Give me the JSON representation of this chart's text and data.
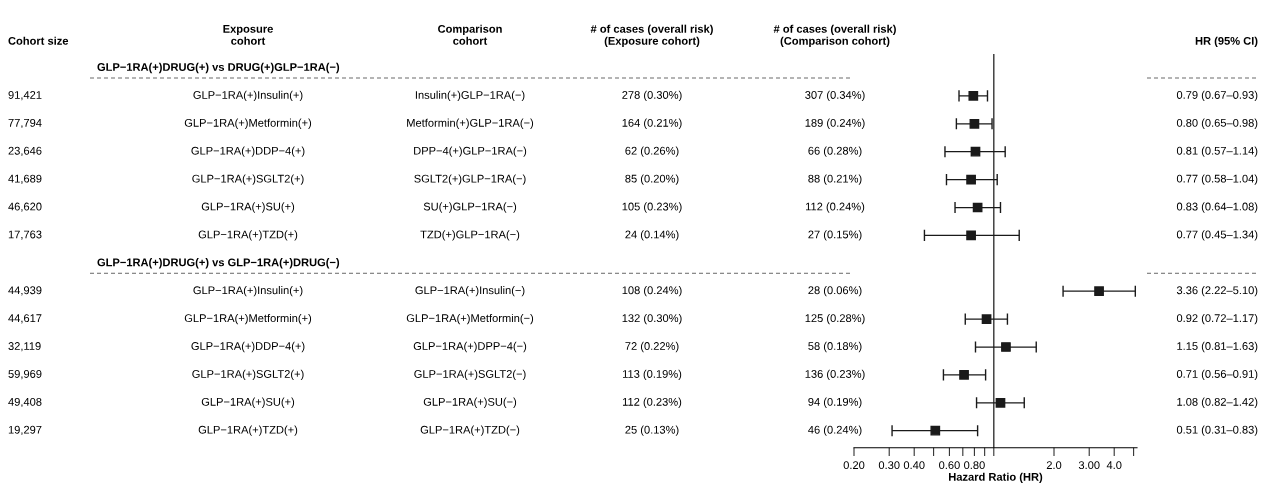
{
  "chart_data": [
    {
      "type": "other",
      "categories": [
        "Cohort size",
        "Exposure\ncohort",
        "Comparison\ncohort",
        "# of cases (overall risk)\n(Exposure cohort)",
        "# of cases (overall risk)\n(Comparison cohort)",
        "HR (95% CI)"
      ],
      "annotations": [
        "GLP−1RA(+)DRUG(+) vs DRUG(+)GLP−1RA(−)",
        "GLP−1RA(+)DRUG(+) vs GLP−1RA(+)DRUG(−)"
      ],
      "cell_labels": [
        [
          null,
          null,
          null,
          null,
          null
        ],
        [
          "91,421",
          "GLP−1RA(+)Insulin(+)",
          "Insulin(+)GLP−1RA(−)",
          "278 (0.30%)",
          "307 (0.34%)"
        ],
        [
          "77,794",
          "GLP−1RA(+)Metformin(+)",
          "Metformin(+)GLP−1RA(−)",
          "164 (0.21%)",
          "189 (0.24%)"
        ],
        [
          "23,646",
          "GLP−1RA(+)DDP−4(+)",
          "DPP−4(+)GLP−1RA(−)",
          "62 (0.26%)",
          "66 (0.28%)"
        ],
        [
          "41,689",
          "GLP−1RA(+)SGLT2(+)",
          "SGLT2(+)GLP−1RA(−)",
          "85 (0.20%)",
          "88 (0.21%)"
        ],
        [
          "46,620",
          "GLP−1RA(+)SU(+)",
          "SU(+)GLP−1RA(−)",
          "105 (0.23%)",
          "112 (0.24%)"
        ],
        [
          "17,763",
          "GLP−1RA(+)TZD(+)",
          "TZD(+)GLP−1RA(−)",
          "24 (0.14%)",
          "27 (0.15%)"
        ],
        [
          null,
          null,
          null,
          null,
          null
        ],
        [
          "44,939",
          "GLP−1RA(+)Insulin(+)",
          "GLP−1RA(+)Insulin(−)",
          "108 (0.24%)",
          "28 (0.06%)"
        ],
        [
          "44,617",
          "GLP−1RA(+)Metformin(+)",
          "GLP−1RA(+)Metformin(−)",
          "132 (0.30%)",
          "125 (0.28%)"
        ],
        [
          "32,119",
          "GLP−1RA(+)DDP−4(+)",
          "GLP−1RA(+)DPP−4(−)",
          "72 (0.22%)",
          "58 (0.18%)"
        ],
        [
          "59,969",
          "GLP−1RA(+)SGLT2(+)",
          "GLP−1RA(+)SGLT2(−)",
          "113 (0.19%)",
          "136 (0.23%)"
        ],
        [
          "49,408",
          "GLP−1RA(+)SU(+)",
          "GLP−1RA(+)SU(−)",
          "112 (0.23%)",
          "94 (0.19%)"
        ],
        [
          "19,297",
          "GLP−1RA(+)TZD(+)",
          "GLP−1RA(+)TZD(−)",
          "25 (0.13%)",
          "46 (0.24%)"
        ]
      ]
    },
    {
      "type": "scatter",
      "orientation": "horizontal",
      "xlabel": "Hazard Ratio (HR)",
      "categories": [
        null,
        null,
        null,
        null,
        null,
        null,
        null,
        null,
        null,
        null,
        null,
        null,
        null,
        null
      ],
      "values": [
        null,
        0.79,
        0.8,
        0.81,
        0.77,
        0.83,
        0.77,
        null,
        3.36,
        0.92,
        1.15,
        0.71,
        1.08,
        0.51
      ],
      "errors": [
        null,
        [
          0.67,
          0.93
        ],
        [
          0.65,
          0.98
        ],
        [
          0.57,
          1.14
        ],
        [
          0.58,
          1.04
        ],
        [
          0.64,
          1.08
        ],
        [
          0.45,
          1.34
        ],
        null,
        [
          2.22,
          5.1
        ],
        [
          0.72,
          1.17
        ],
        [
          0.81,
          1.63
        ],
        [
          0.56,
          0.91
        ],
        [
          0.82,
          1.42
        ],
        [
          0.31,
          0.83
        ]
      ],
      "value_labels": [
        null,
        "0.79 (0.67–0.93)",
        "0.80 (0.65–0.98)",
        "0.81 (0.57–1.14)",
        "0.77 (0.58–1.04)",
        "0.83 (0.64–1.08)",
        "0.77 (0.45–1.34)",
        null,
        "3.36 (2.22–5.10)",
        "0.92 (0.72–1.17)",
        "1.15 (0.81–1.63)",
        "0.71 (0.56–0.91)",
        "1.08 (0.82–1.42)",
        "0.51 (0.31–0.83)"
      ],
      "color": "#1a1a1a",
      "marker": "square",
      "log": "x",
      "tick_labels": "x",
      "xlim": [
        0.2,
        5.2
      ],
      "xticks": [
        {
          "value": 0.2,
          "label": "0.20"
        },
        {
          "value": 0.3,
          "label": "0.30"
        },
        {
          "value": 0.4,
          "label": "0.40"
        },
        {
          "value": 0.5,
          "label": null
        },
        {
          "value": 0.6,
          "label": "0.60"
        },
        {
          "value": 0.7,
          "label": null
        },
        {
          "value": 0.8,
          "label": "0.80"
        },
        {
          "value": 0.9,
          "label": null
        },
        {
          "value": 1,
          "label": null
        },
        {
          "value": 2,
          "label": "2.0"
        },
        {
          "value": 3,
          "label": "3.00"
        },
        {
          "value": 4,
          "label": "4.0"
        },
        {
          "value": 5,
          "label": null
        }
      ],
      "ref_lines": [
        {
          "axis": "x",
          "value": 1,
          "color": "#333333"
        }
      ]
    }
  ]
}
